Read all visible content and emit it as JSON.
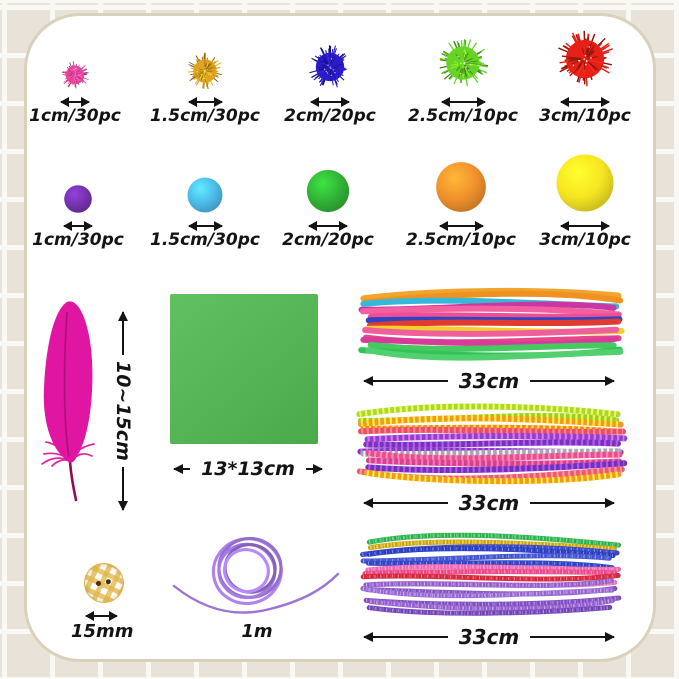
{
  "colors": {
    "background": "#e8e2d9",
    "grid_line": "#faf8f4",
    "card_background": "#ffffff",
    "card_border": "#d8d2bb",
    "text": "#141414",
    "arrow": "#141414"
  },
  "glitter_poms": {
    "items": [
      {
        "label": "1cm/30pc",
        "size_cm": 1,
        "count": 30,
        "color": "#e8459a",
        "color_name": "pink"
      },
      {
        "label": "1.5cm/30pc",
        "size_cm": 1.5,
        "count": 30,
        "color": "#e0a41c",
        "color_name": "gold"
      },
      {
        "label": "2cm/20pc",
        "size_cm": 2,
        "count": 20,
        "color": "#2a1ccc",
        "color_name": "blue"
      },
      {
        "label": "2.5cm/10pc",
        "size_cm": 2.5,
        "count": 10,
        "color": "#66d424",
        "color_name": "green"
      },
      {
        "label": "3cm/10pc",
        "size_cm": 3,
        "count": 10,
        "color": "#e62017",
        "color_name": "red"
      }
    ]
  },
  "plain_poms": {
    "items": [
      {
        "label": "1cm/30pc",
        "size_cm": 1,
        "count": 30,
        "color": "#7433ad",
        "color_name": "purple"
      },
      {
        "label": "1.5cm/30pc",
        "size_cm": 1.5,
        "count": 30,
        "color": "#4cb9e8",
        "color_name": "light-blue"
      },
      {
        "label": "2cm/20pc",
        "size_cm": 2,
        "count": 20,
        "color": "#31b236",
        "color_name": "green"
      },
      {
        "label": "2.5cm/10pc",
        "size_cm": 2.5,
        "count": 10,
        "color": "#f0902c",
        "color_name": "orange"
      },
      {
        "label": "3cm/10pc",
        "size_cm": 3,
        "count": 10,
        "color": "#f6e522",
        "color_name": "yellow"
      }
    ]
  },
  "feather": {
    "label": "10~15cm",
    "color": "#e015a2",
    "color_name": "magenta"
  },
  "paper": {
    "label": "13*13cm",
    "color": "#57b757",
    "color_name": "green"
  },
  "bundles": [
    {
      "style": "plain",
      "label": "33cm",
      "colors": [
        "#f2a52c",
        "#ef9221",
        "#38b8d8",
        "#c937a2",
        "#f2609f",
        "#ee4e94",
        "#2c46c3",
        "#e03a31",
        "#f2cf2b",
        "#ef5f9a",
        "#e8468b",
        "#d93b9b",
        "#45ca62",
        "#33c257",
        "#52cf6e"
      ]
    },
    {
      "style": "striped",
      "label": "33cm",
      "colors": [
        "#a8d834",
        "#96cf2a",
        "#f09a25",
        "#ed8a1e",
        "#e84f5e",
        "#8a44c9",
        "#7334b8",
        "#7d3cc0",
        "#a8a8b2",
        "#e8517f",
        "#d4457f",
        "#6f32b2",
        "#ee5a68",
        "#f09a25"
      ]
    },
    {
      "style": "glitter",
      "label": "33cm",
      "colors": [
        "#35a852",
        "#c7a021",
        "#3847bb",
        "#2c3cb4",
        "#4353c6",
        "#3142b8",
        "#ee66a6",
        "#e84a82",
        "#cc2a3e",
        "#ea74b0",
        "#8d60c4",
        "#7e52b8",
        "#9168cc",
        "#7a4eb4",
        "#8d60c4",
        "#6f46aa"
      ]
    }
  ],
  "button": {
    "label": "15mm",
    "color": "#e2b64b",
    "pattern": "gingham"
  },
  "cord": {
    "label": "1m",
    "color": "#9b74d6",
    "color_name": "purple"
  }
}
